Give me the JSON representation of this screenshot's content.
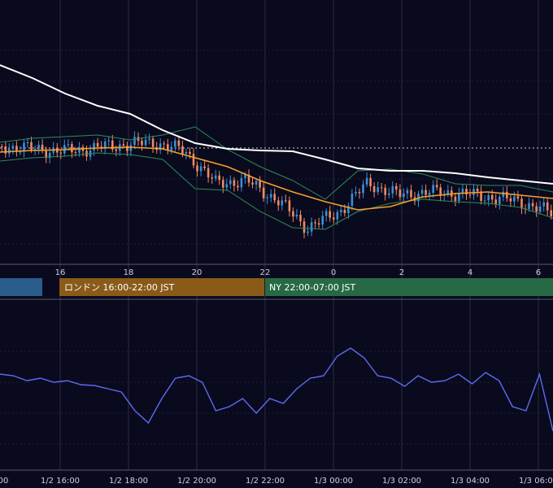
{
  "sessions": [
    {
      "label": "",
      "color": "#2a5d8c"
    },
    {
      "label": "ロンドン 16:00-22:00 JST",
      "color": "#8a5a18"
    },
    {
      "label": "NY 22:00-07:00 JST",
      "color": "#276944"
    }
  ],
  "colors": {
    "background": "#0a0a1e",
    "grid": "#2a2a44",
    "up": "#3a8fd6",
    "down": "#ef8a62",
    "sma_long": "#ffffff",
    "sma_short": "#f5a02a",
    "bollinger": "#2e8b57",
    "oscillator": "#5b6cf0",
    "reference_line": "#cfcfcf"
  },
  "chart_data": [
    {
      "type": "candlestick",
      "x_tick_labels": [
        "16",
        "18",
        "20",
        "22",
        "0",
        "2",
        "4",
        "6"
      ],
      "indicators": [
        "SMA long (white)",
        "SMA short (orange)",
        "Bollinger bands (green)"
      ],
      "reference_line": "dotted horizontal price line",
      "series": [
        {
          "role": "sma_long",
          "values": [
            80,
            96,
            115,
            130,
            140,
            160,
            176,
            183,
            185,
            186,
            196,
            207,
            210,
            210,
            213,
            218,
            222,
            226
          ]
        },
        {
          "role": "sma_short",
          "values": [
            187,
            185,
            184,
            182,
            181,
            183,
            194,
            205,
            222,
            236,
            248,
            258,
            254,
            242,
            238,
            236,
            240,
            244
          ]
        },
        {
          "role": "bb_upper",
          "values": [
            175,
            170,
            168,
            166,
            172,
            166,
            156,
            184,
            205,
            222,
            245,
            210,
            208,
            214,
            226,
            228,
            228,
            236
          ]
        },
        {
          "role": "bb_lower",
          "values": [
            198,
            194,
            192,
            188,
            190,
            196,
            232,
            234,
            260,
            280,
            282,
            260,
            250,
            245,
            248,
            250,
            255,
            268
          ]
        },
        {
          "role": "close",
          "values": [
            180,
            183,
            186,
            182,
            178,
            175,
            186,
            225,
            222,
            245,
            280,
            262,
            225,
            240,
            236,
            238,
            242,
            248,
            262
          ]
        }
      ]
    },
    {
      "type": "line",
      "x_tick_labels": [
        "00",
        "1/2 16:00",
        "1/2 18:00",
        "1/2 20:00",
        "1/2 22:00",
        "1/3 00:00",
        "1/3 02:00",
        "1/3 04:00",
        "1/3 06:00"
      ],
      "series": [
        {
          "role": "oscillator",
          "values": [
            460,
            462,
            468,
            465,
            470,
            468,
            473,
            474,
            478,
            482,
            505,
            520,
            490,
            465,
            462,
            470,
            505,
            500,
            490,
            508,
            490,
            496,
            478,
            465,
            462,
            438,
            428,
            440,
            462,
            465,
            475,
            462,
            470,
            468,
            460,
            472,
            458,
            468,
            500,
            505,
            460,
            530
          ]
        }
      ]
    }
  ]
}
